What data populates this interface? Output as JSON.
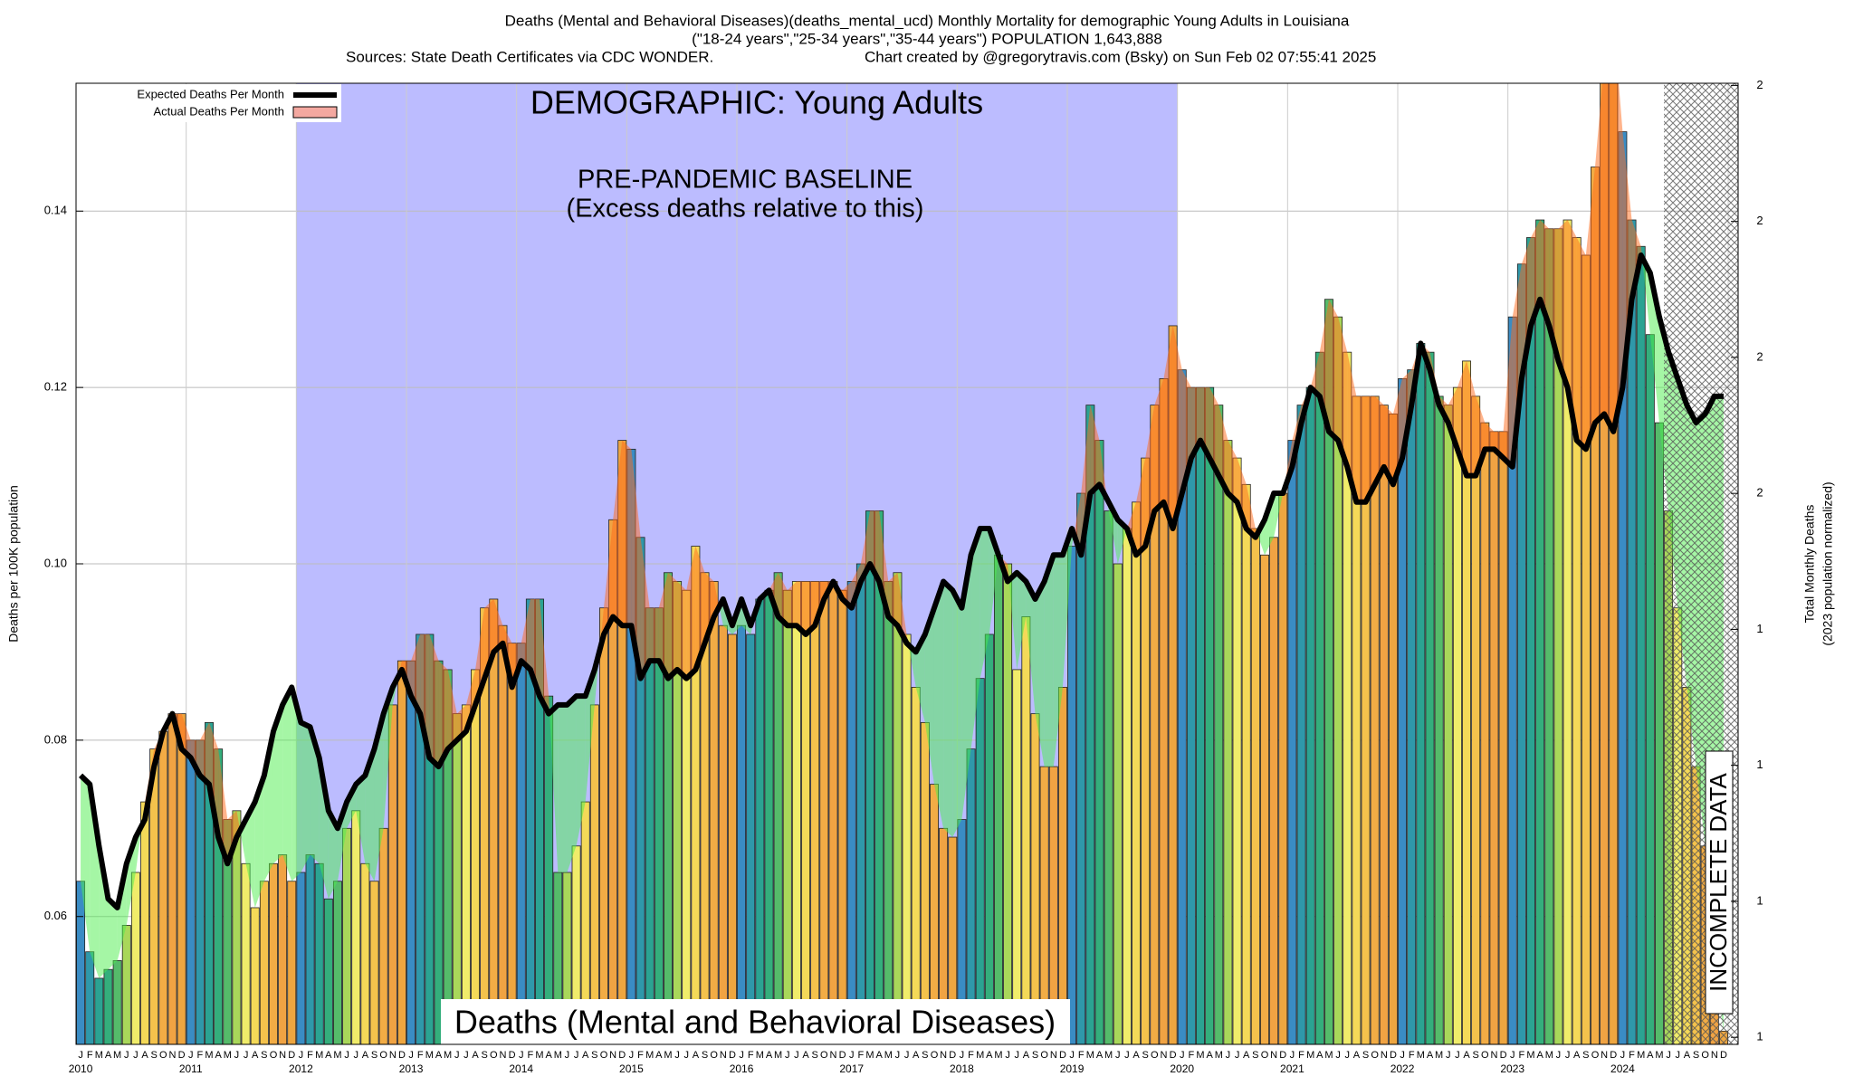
{
  "chart_data": {
    "type": "bar",
    "title": "Deaths (Mental and Behavioral Diseases)(deaths_mental_ucd) Monthly Mortality for demographic Young Adults in Louisiana",
    "subtitle": "(\"18-24 years\",\"25-34 years\",\"35-44 years\") POPULATION 1,643,888",
    "sources": "Sources: State Death Certificates via CDC WONDER.",
    "credit": "Chart created by @gregorytravis.com (Bsky) on Sun Feb 02 07:55:41 2025",
    "y_label": "Deaths per 100K population",
    "y2_label": "Total Monthly Deaths",
    "y2_sublabel": "(2023 population normalized)",
    "annotations": {
      "demographic": "DEMOGRAPHIC: Young Adults",
      "baseline": "PRE-PANDEMIC BASELINE",
      "baseline_note": "(Excess deaths relative to this)",
      "cause": "Deaths (Mental and Behavioral Diseases)",
      "incomplete": "INCOMPLETE DATA"
    },
    "categories": [
      "J",
      "F",
      "M",
      "A",
      "M",
      "J",
      "J",
      "A",
      "S",
      "O",
      "N",
      "D",
      "J",
      "F",
      "M",
      "A",
      "M",
      "J",
      "J",
      "A",
      "S",
      "O",
      "N",
      "D",
      "J",
      "F",
      "M",
      "A",
      "M",
      "J",
      "J",
      "A",
      "S",
      "O",
      "N",
      "D",
      "J",
      "F",
      "M",
      "A",
      "M",
      "J",
      "J",
      "A",
      "S",
      "O",
      "N",
      "D",
      "J",
      "F",
      "M",
      "A",
      "M",
      "J",
      "J",
      "A",
      "S",
      "O",
      "N",
      "D",
      "J",
      "F",
      "M",
      "A",
      "M",
      "J",
      "J",
      "A",
      "S",
      "O",
      "N",
      "D",
      "J",
      "F",
      "M",
      "A",
      "M",
      "J",
      "J",
      "A",
      "S",
      "O",
      "N",
      "D",
      "J",
      "F",
      "M",
      "A",
      "M",
      "J",
      "J",
      "A",
      "S",
      "O",
      "N",
      "D",
      "J",
      "F",
      "M",
      "A",
      "M",
      "J",
      "J",
      "A",
      "S",
      "O",
      "N",
      "D",
      "J",
      "F",
      "M",
      "A",
      "M",
      "J",
      "J",
      "A",
      "S",
      "O",
      "N",
      "D",
      "J",
      "F",
      "M",
      "A",
      "M",
      "J",
      "J",
      "A",
      "S",
      "O",
      "N",
      "D",
      "J",
      "F",
      "M",
      "A",
      "M",
      "J",
      "J",
      "A",
      "S",
      "O",
      "N",
      "D",
      "J",
      "F",
      "M",
      "A",
      "M",
      "J",
      "J",
      "A",
      "S",
      "O",
      "N",
      "D",
      "J",
      "F",
      "M",
      "A",
      "M",
      "J",
      "J",
      "A",
      "S",
      "O",
      "N",
      "D",
      "J",
      "F",
      "M",
      "A",
      "M",
      "J",
      "J",
      "A",
      "S",
      "O",
      "N",
      "D"
    ],
    "years": [
      "2010",
      "2011",
      "2012",
      "2013",
      "2014",
      "2015",
      "2016",
      "2017",
      "2018",
      "2019",
      "2020",
      "2021",
      "2022",
      "2023",
      "2024"
    ],
    "month_colors": [
      "#3a8cc4",
      "#2f98aa",
      "#2ba392",
      "#34ae7c",
      "#55bb6a",
      "#a9d75a",
      "#f0ec6a",
      "#f4d958",
      "#f4c24c",
      "#f2ac45",
      "#f0a343",
      "#eea640"
    ],
    "series": [
      {
        "name": "Expected Deaths Per Month",
        "color": "#000000",
        "values": [
          0.076,
          0.075,
          0.068,
          0.062,
          0.061,
          0.066,
          0.069,
          0.071,
          0.077,
          0.081,
          0.083,
          0.079,
          0.078,
          0.076,
          0.075,
          0.069,
          0.066,
          0.069,
          0.071,
          0.073,
          0.076,
          0.081,
          0.084,
          0.086,
          0.082,
          0.0815,
          0.078,
          0.072,
          0.07,
          0.073,
          0.075,
          0.076,
          0.079,
          0.083,
          0.086,
          0.088,
          0.085,
          0.083,
          0.078,
          0.077,
          0.079,
          0.08,
          0.081,
          0.084,
          0.087,
          0.09,
          0.091,
          0.086,
          0.089,
          0.088,
          0.085,
          0.083,
          0.084,
          0.084,
          0.085,
          0.085,
          0.088,
          0.092,
          0.094,
          0.093,
          0.093,
          0.087,
          0.089,
          0.089,
          0.087,
          0.088,
          0.087,
          0.088,
          0.091,
          0.094,
          0.096,
          0.093,
          0.096,
          0.093,
          0.096,
          0.097,
          0.094,
          0.093,
          0.093,
          0.092,
          0.093,
          0.096,
          0.098,
          0.096,
          0.095,
          0.098,
          0.1,
          0.098,
          0.094,
          0.093,
          0.091,
          0.09,
          0.092,
          0.095,
          0.098,
          0.097,
          0.095,
          0.101,
          0.104,
          0.104,
          0.101,
          0.098,
          0.099,
          0.098,
          0.096,
          0.098,
          0.101,
          0.101,
          0.104,
          0.101,
          0.108,
          0.109,
          0.107,
          0.105,
          0.104,
          0.101,
          0.102,
          0.106,
          0.107,
          0.104,
          0.108,
          0.112,
          0.114,
          0.112,
          0.11,
          0.108,
          0.107,
          0.104,
          0.103,
          0.105,
          0.108,
          0.108,
          0.111,
          0.116,
          0.12,
          0.119,
          0.115,
          0.114,
          0.111,
          0.107,
          0.107,
          0.109,
          0.111,
          0.109,
          0.112,
          0.118,
          0.125,
          0.122,
          0.118,
          0.116,
          0.113,
          0.11,
          0.11,
          0.113,
          0.113,
          0.112,
          0.111,
          0.121,
          0.127,
          0.13,
          0.127,
          0.123,
          0.12,
          0.114,
          0.113,
          0.116,
          0.117,
          0.115,
          0.12,
          0.13,
          0.135,
          0.133,
          0.128,
          0.124,
          0.121,
          0.118,
          0.116,
          0.117,
          0.119,
          0.119
        ]
      },
      {
        "name": "Actual Deaths Per Month",
        "color": "#f4a8a0",
        "values": [
          0.064,
          0.056,
          0.053,
          0.054,
          0.055,
          0.059,
          0.065,
          0.073,
          0.079,
          0.081,
          0.083,
          0.083,
          0.08,
          0.08,
          0.082,
          0.079,
          0.071,
          0.072,
          0.066,
          0.061,
          0.064,
          0.066,
          0.067,
          0.064,
          0.065,
          0.067,
          0.066,
          0.062,
          0.064,
          0.07,
          0.072,
          0.066,
          0.064,
          0.07,
          0.084,
          0.089,
          0.089,
          0.092,
          0.092,
          0.089,
          0.088,
          0.083,
          0.084,
          0.088,
          0.095,
          0.096,
          0.093,
          0.091,
          0.091,
          0.096,
          0.096,
          0.085,
          0.065,
          0.065,
          0.068,
          0.073,
          0.084,
          0.095,
          0.105,
          0.114,
          0.113,
          0.103,
          0.095,
          0.095,
          0.099,
          0.098,
          0.097,
          0.102,
          0.099,
          0.098,
          0.093,
          0.092,
          0.093,
          0.092,
          0.096,
          0.097,
          0.099,
          0.097,
          0.098,
          0.098,
          0.098,
          0.098,
          0.098,
          0.097,
          0.098,
          0.1,
          0.106,
          0.106,
          0.098,
          0.099,
          0.092,
          0.086,
          0.082,
          0.075,
          0.07,
          0.069,
          0.071,
          0.079,
          0.087,
          0.092,
          0.101,
          0.1,
          0.088,
          0.094,
          0.083,
          0.077,
          0.077,
          0.086,
          0.102,
          0.108,
          0.118,
          0.114,
          0.106,
          0.1,
          0.104,
          0.107,
          0.112,
          0.118,
          0.121,
          0.127,
          0.122,
          0.12,
          0.12,
          0.12,
          0.118,
          0.114,
          0.112,
          0.109,
          0.104,
          0.101,
          0.103,
          0.108,
          0.114,
          0.118,
          0.12,
          0.124,
          0.13,
          0.128,
          0.124,
          0.119,
          0.119,
          0.119,
          0.118,
          0.117,
          0.121,
          0.122,
          0.125,
          0.124,
          0.119,
          0.118,
          0.12,
          0.123,
          0.119,
          0.116,
          0.115,
          0.115,
          0.128,
          0.134,
          0.137,
          0.139,
          0.138,
          0.138,
          0.139,
          0.137,
          0.135,
          0.145,
          0.157,
          0.162,
          0.149,
          0.139,
          0.136,
          0.126,
          0.116,
          0.106,
          0.095,
          0.086,
          0.077,
          0.068,
          0.055,
          0.047
        ]
      }
    ],
    "ylim": [
      0.0455,
      0.1545
    ],
    "yticks": [
      0.06,
      0.08,
      {
        "value": 0.1,
        "label": "0.10"
      },
      0.12,
      0.14
    ],
    "y2lim": [
      0.687,
      2.454
    ],
    "y2ticks": [
      {
        "value": 0.7,
        "label": "1"
      },
      {
        "value": 0.95,
        "label": "1"
      },
      {
        "value": 1.2,
        "label": "1"
      },
      {
        "value": 1.45,
        "label": "1"
      },
      {
        "value": 1.7,
        "label": "2"
      },
      {
        "value": 1.95,
        "label": "2"
      },
      {
        "value": 2.2,
        "label": "2"
      },
      {
        "value": 2.45,
        "label": "2"
      }
    ],
    "grid": true,
    "legend": "top-left"
  }
}
